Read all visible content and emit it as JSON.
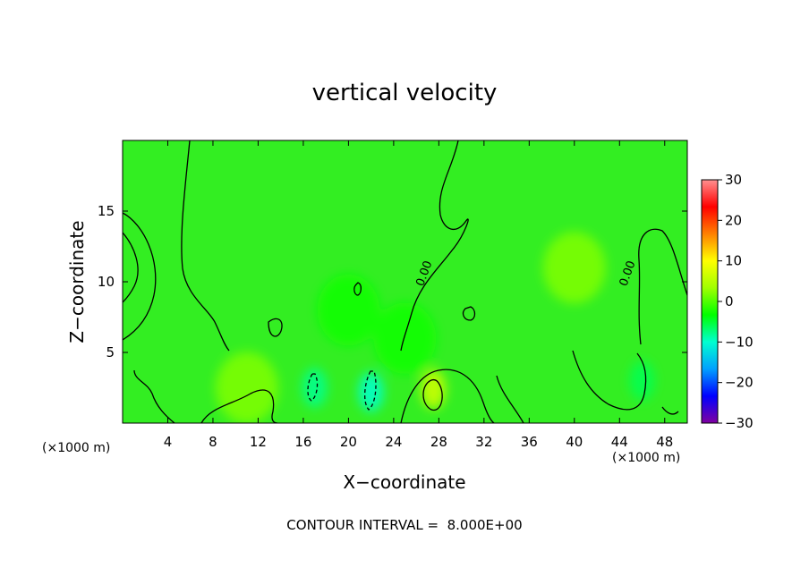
{
  "chart_data": {
    "type": "heatmap",
    "title": "vertical velocity",
    "xlabel": "X−coordinate",
    "ylabel": "Z−coordinate",
    "x_unit_left": "(×1000 m)",
    "x_unit_right": "(×1000 m)",
    "xlim": [
      0,
      50
    ],
    "ylim": [
      0,
      20
    ],
    "x_ticks": [
      4,
      8,
      12,
      16,
      20,
      24,
      28,
      32,
      36,
      40,
      44,
      48
    ],
    "y_ticks": [
      5,
      10,
      15
    ],
    "colorbar": {
      "range": [
        -30,
        30
      ],
      "ticks": [
        30,
        20,
        10,
        0,
        -10,
        -20,
        -30
      ],
      "tick_labels": [
        "30",
        "20",
        "10",
        "0",
        "−10",
        "−20",
        "−30"
      ],
      "colors": [
        "#8000a0",
        "#0000ff",
        "#00a0ff",
        "#00ffd0",
        "#00ff00",
        "#a0ff00",
        "#ffff00",
        "#ff8000",
        "#ff0000",
        "#ff9090"
      ]
    },
    "base_color": "#33ee22",
    "anomalies": [
      {
        "x": 17,
        "z": 2.5,
        "value": -8
      },
      {
        "x": 22,
        "z": 2.2,
        "value": -10
      },
      {
        "x": 27.5,
        "z": 2.4,
        "value": 7
      },
      {
        "x": 20,
        "z": 8,
        "value": -3
      },
      {
        "x": 25,
        "z": 6,
        "value": -3
      },
      {
        "x": 46,
        "z": 3,
        "value": -6
      },
      {
        "x": 11,
        "z": 2.5,
        "value": 2
      },
      {
        "x": 40,
        "z": 11,
        "value": 2
      }
    ],
    "contour_labels": [
      {
        "text": "0.00",
        "x": 27,
        "z": 10.5
      },
      {
        "text": "0.00",
        "x": 45,
        "z": 10.5
      }
    ],
    "footer": "CONTOUR INTERVAL =  8.000E+00"
  }
}
